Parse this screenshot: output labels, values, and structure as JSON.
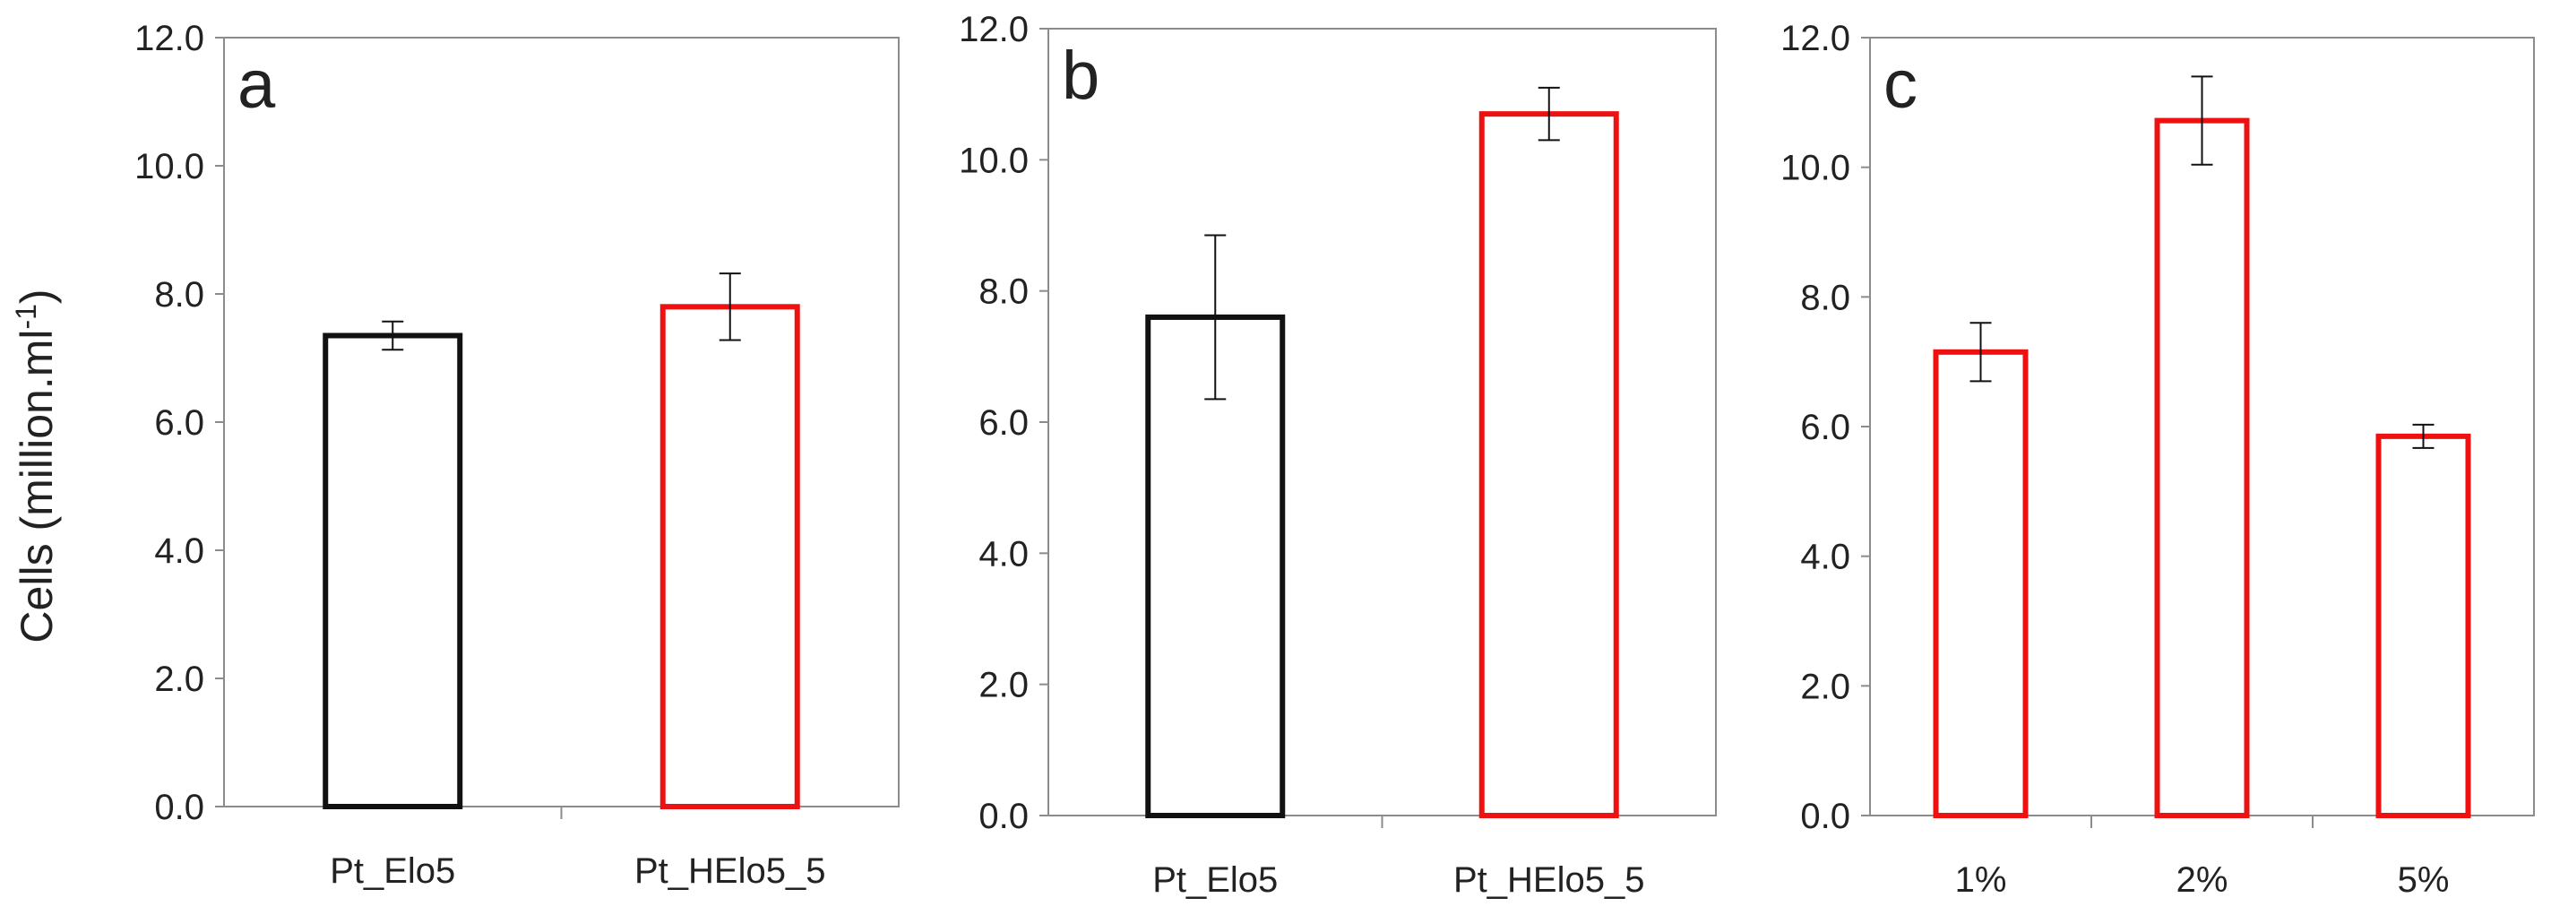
{
  "figure": {
    "ylabel": "Cells (million.ml",
    "ylabel_superscript": "-1",
    "ylabel_close": ")"
  },
  "chart_data": [
    {
      "type": "bar",
      "panel_label": "a",
      "categories": [
        "Pt_Elo5",
        "Pt_HElo5_5"
      ],
      "values": [
        7.35,
        7.8
      ],
      "errors": [
        0.22,
        0.52
      ],
      "bar_colors": [
        "#111111",
        "#ee1111"
      ],
      "ylim": [
        0,
        12
      ],
      "yticks": [
        "0.0",
        "2.0",
        "4.0",
        "6.0",
        "8.0",
        "10.0",
        "12.0"
      ],
      "title": "",
      "xlabel": "",
      "ylabel": "Cells (million.ml-1)"
    },
    {
      "type": "bar",
      "panel_label": "b",
      "categories": [
        "Pt_Elo5",
        "Pt_HElo5_5"
      ],
      "values": [
        7.6,
        10.7
      ],
      "errors": [
        1.25,
        0.4
      ],
      "bar_colors": [
        "#111111",
        "#ee1111"
      ],
      "ylim": [
        0,
        12
      ],
      "yticks": [
        "0.0",
        "2.0",
        "4.0",
        "6.0",
        "8.0",
        "10.0",
        "12.0"
      ],
      "title": "",
      "xlabel": "",
      "ylabel": ""
    },
    {
      "type": "bar",
      "panel_label": "c",
      "categories": [
        "1%",
        "2%",
        "5%"
      ],
      "values": [
        7.15,
        10.72,
        5.85
      ],
      "errors": [
        0.45,
        0.68,
        0.18
      ],
      "bar_colors": [
        "#ee1111",
        "#ee1111",
        "#ee1111"
      ],
      "ylim": [
        0,
        12
      ],
      "yticks": [
        "0.0",
        "2.0",
        "4.0",
        "6.0",
        "8.0",
        "10.0",
        "12.0"
      ],
      "title": "",
      "xlabel": "",
      "ylabel": ""
    }
  ]
}
